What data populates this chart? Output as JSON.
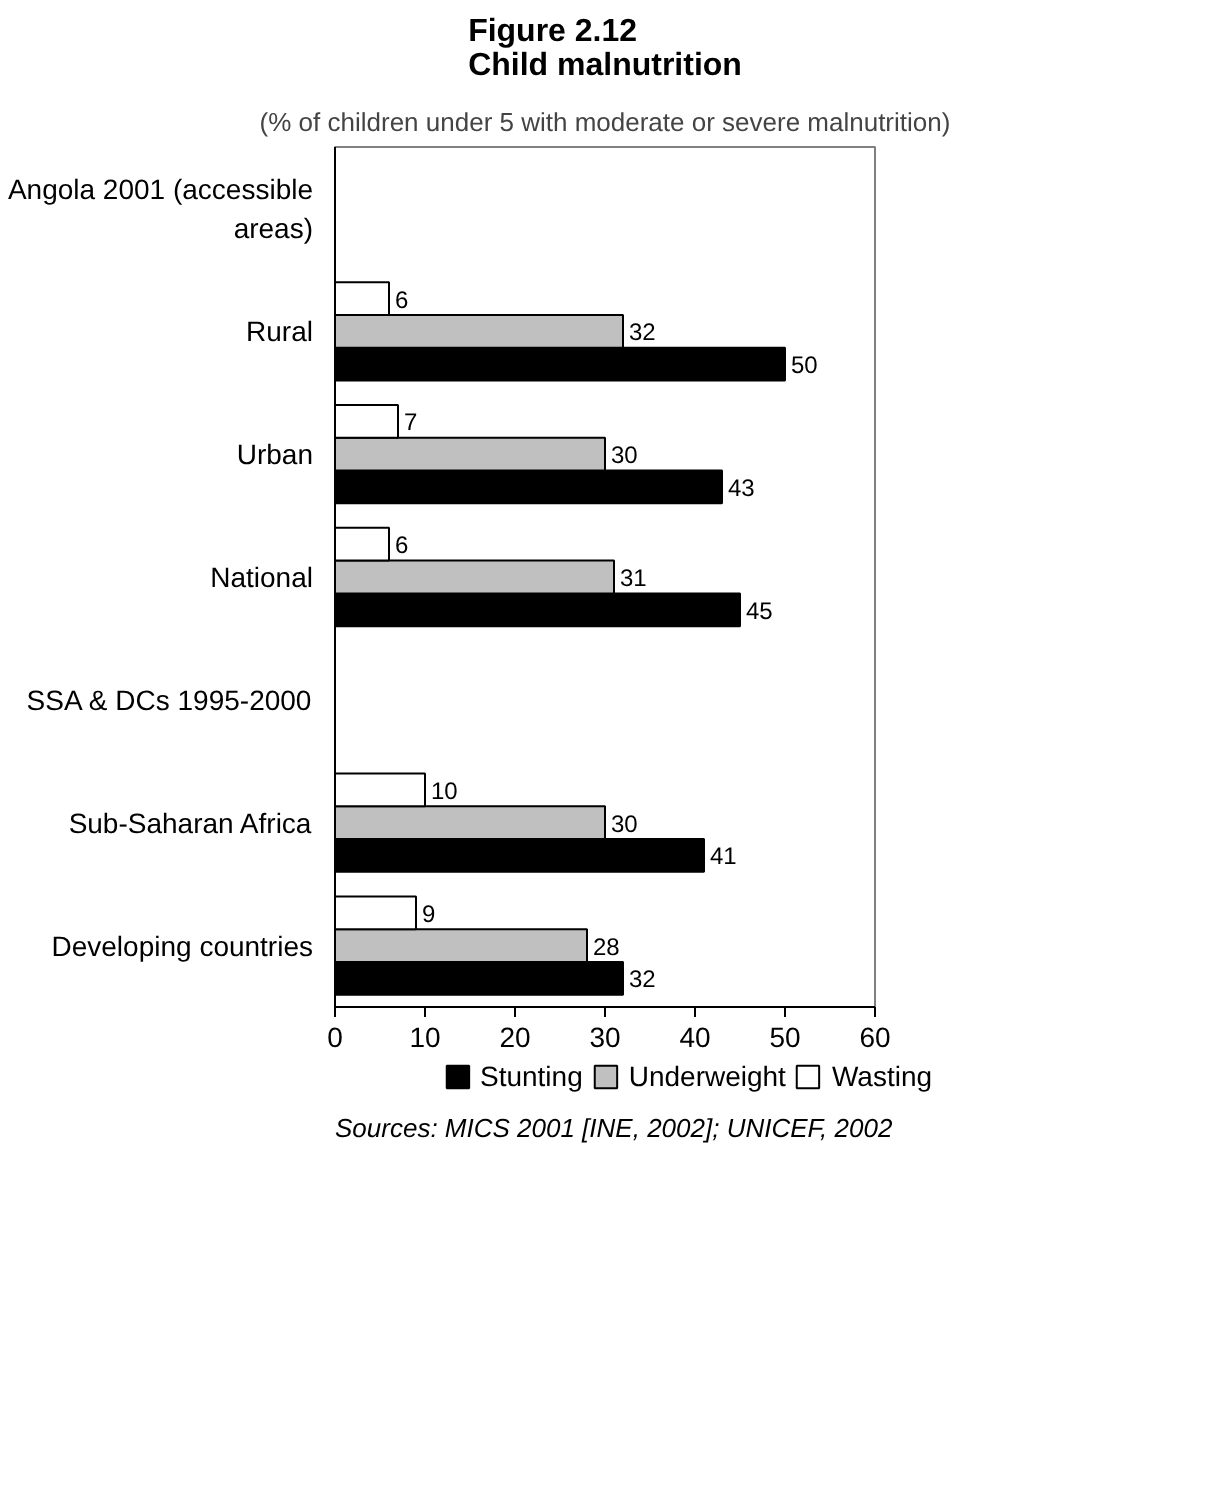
{
  "chart_data": {
    "type": "bar",
    "orientation": "horizontal",
    "title": "Figure 2.12\nChild malnutrition",
    "subtitle": "(% of children under 5 with moderate or severe malnutrition)",
    "categories": [
      "Angola 2001 (accessible\nareas)",
      "Rural",
      "Urban",
      "National",
      "SSA & DCs 1995-2000",
      "Sub-Saharan Africa",
      "Developing countries"
    ],
    "series": [
      {
        "name": "Stunting",
        "color": "#000000",
        "values": [
          null,
          50,
          43,
          45,
          null,
          41,
          32
        ]
      },
      {
        "name": "Underweight",
        "color": "#c0c0c0",
        "values": [
          null,
          32,
          30,
          31,
          null,
          30,
          28
        ]
      },
      {
        "name": "Wasting",
        "color": "#ffffff",
        "values": [
          null,
          6,
          7,
          6,
          null,
          10,
          9
        ]
      }
    ],
    "xlim": [
      0,
      60
    ],
    "xticks": [
      0,
      10,
      20,
      30,
      40,
      50,
      60
    ],
    "grid": false,
    "legend": "bottom",
    "data_labels": true,
    "annotations": [
      "Sources: MICS 2001 [INE, 2002]; UNICEF, 2002"
    ]
  }
}
